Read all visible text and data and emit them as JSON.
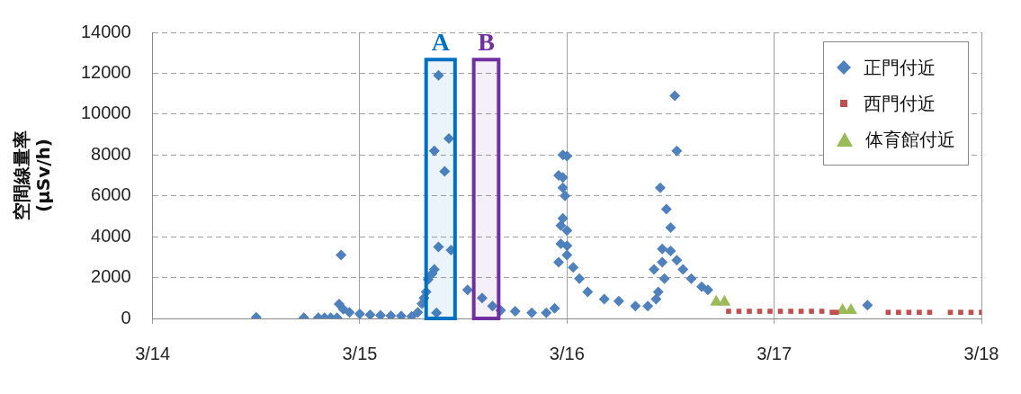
{
  "chart_data": {
    "type": "scatter",
    "ylabel": "空間線量率\n(μSv/h)",
    "xlim": [
      "--03-14",
      "--03-18"
    ],
    "xticks": [
      {
        "value": "--03-14",
        "label": "3/14"
      },
      {
        "value": "--03-15",
        "label": "3/15"
      },
      {
        "value": "--03-16",
        "label": "3/16"
      },
      {
        "value": "--03-17",
        "label": "3/17"
      },
      {
        "value": "--03-18",
        "label": "3/18"
      }
    ],
    "ylim": [
      0,
      14000
    ],
    "yticks": [
      0,
      2000,
      4000,
      6000,
      8000,
      10000,
      12000,
      14000
    ],
    "grid": true,
    "legend": "top right",
    "bands": [
      {
        "axis": "x",
        "from": "--03-15T07:41",
        "to": "--03-15T11:02",
        "label": "A",
        "color": "#0070c0"
      },
      {
        "axis": "x",
        "from": "--03-15T13:12",
        "to": "--03-15T16:05",
        "label": "B",
        "color": "#7030a0"
      }
    ],
    "series": [
      {
        "name": "正門付近",
        "color": "#4f81bd",
        "marker": "diamond",
        "x": [
          "--03-14T12:00",
          "--03-14T17:31",
          "--03-14T19:12",
          "--03-14T19:55",
          "--03-14T20:38",
          "--03-14T21:22",
          "--03-14T21:36",
          "--03-14T21:50",
          "--03-14T22:05",
          "--03-14T22:48",
          "--03-15T00:00",
          "--03-15T01:12",
          "--03-15T02:24",
          "--03-15T03:36",
          "--03-15T04:48",
          "--03-15T06:00",
          "--03-15T06:43",
          "--03-15T07:12",
          "--03-15T07:26",
          "--03-15T07:41",
          "--03-15T07:55",
          "--03-15T08:24",
          "--03-15T08:38",
          "--03-15T08:38",
          "--03-15T08:53",
          "--03-15T09:07",
          "--03-15T09:07",
          "--03-15T09:50",
          "--03-15T10:19",
          "--03-15T10:34",
          "--03-15T12:29",
          "--03-15T14:10",
          "--03-15T15:22",
          "--03-15T16:19",
          "--03-15T18:00",
          "--03-15T19:55",
          "--03-15T21:36",
          "--03-15T22:34",
          "--03-15T23:02",
          "--03-15T23:02",
          "--03-15T23:17",
          "--03-15T23:17",
          "--03-15T23:31",
          "--03-15T23:31",
          "--03-15T23:31",
          "--03-15T23:31",
          "--03-15T23:46",
          "--03-16T00:00",
          "--03-16T00:00",
          "--03-16T00:00",
          "--03-16T00:00",
          "--03-16T00:43",
          "--03-16T01:26",
          "--03-16T02:24",
          "--03-16T04:19",
          "--03-16T06:00",
          "--03-16T07:55",
          "--03-16T09:22",
          "--03-16T10:19",
          "--03-16T10:34",
          "--03-16T10:05",
          "--03-16T10:48",
          "--03-16T11:02",
          "--03-16T11:02",
          "--03-16T11:17",
          "--03-16T11:31",
          "--03-16T12:00",
          "--03-16T12:00",
          "--03-16T12:29",
          "--03-16T12:43",
          "--03-16T12:43",
          "--03-16T13:26",
          "--03-16T14:24",
          "--03-16T15:36",
          "--03-16T16:19",
          "--03-17T10:48"
        ],
        "values": [
          50,
          30,
          30,
          30,
          30,
          30,
          700,
          3100,
          450,
          300,
          220,
          180,
          150,
          130,
          120,
          100,
          300,
          720,
          1000,
          1300,
          1900,
          2200,
          2400,
          8200,
          270,
          11900,
          3500,
          7200,
          8800,
          3350,
          1400,
          1000,
          600,
          400,
          350,
          270,
          270,
          500,
          7000,
          2750,
          4550,
          3650,
          8000,
          6900,
          6400,
          4900,
          6000,
          7950,
          4300,
          3550,
          3100,
          2500,
          1950,
          1300,
          950,
          850,
          600,
          600,
          950,
          1300,
          2400,
          6400,
          2750,
          3400,
          1950,
          5350,
          4450,
          3300,
          10900,
          8200,
          2850,
          2400,
          1950,
          1550,
          1400,
          650
        ]
      },
      {
        "name": "西門付近",
        "color": "#c0504d",
        "marker": "square",
        "x": [
          "--03-16T18:43",
          "--03-16T19:55",
          "--03-16T21:07",
          "--03-16T22:19",
          "--03-16T23:31",
          "--03-17T00:43",
          "--03-17T01:55",
          "--03-17T03:07",
          "--03-17T04:19",
          "--03-17T05:31",
          "--03-17T06:43",
          "--03-17T07:12",
          "--03-17T13:12",
          "--03-17T14:24",
          "--03-17T15:36",
          "--03-17T16:48",
          "--03-17T18:00",
          "--03-17T20:24",
          "--03-17T21:36",
          "--03-17T22:48",
          "--03-18T00:00"
        ],
        "values": [
          350,
          350,
          350,
          350,
          350,
          350,
          350,
          350,
          350,
          350,
          300,
          300,
          300,
          300,
          300,
          300,
          300,
          300,
          300,
          300,
          300
        ]
      },
      {
        "name": "体育館付近",
        "color": "#9bbb59",
        "marker": "triangle",
        "x": [
          "--03-16T17:17",
          "--03-16T18:14",
          "--03-17T07:55",
          "--03-17T08:53"
        ],
        "values": [
          800,
          800,
          400,
          400
        ]
      }
    ]
  }
}
